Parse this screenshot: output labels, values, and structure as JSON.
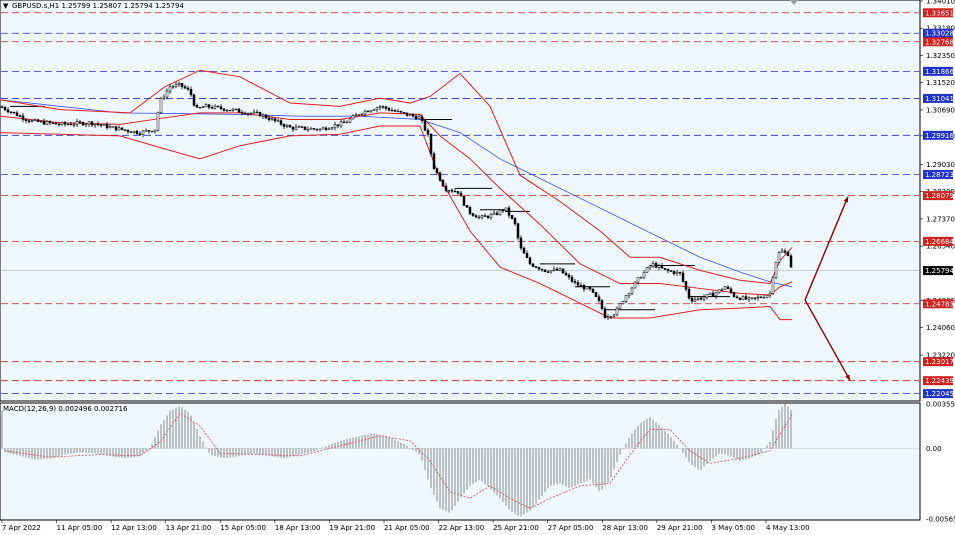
{
  "window": {
    "symbol_header": "GBPUSD.s,H1  1.25799 1.25807 1.25794 1.25794",
    "macd_header": "MACD(12,26,9) 0.002496 0.002716"
  },
  "colors": {
    "background": "#f0f8ff",
    "candles": "#000000",
    "bollinger": "#e02020",
    "moving_average": "#3a55ff",
    "red_level": "#d02020",
    "blue_level": "#2233cc",
    "arrow": "#8b0000",
    "macd_hist": "#8a8a8a",
    "macd_signal": "#d05050"
  },
  "chart_data": [
    {
      "type": "candlestick",
      "panel": "price",
      "symbol": "GBPUSD.s",
      "timeframe": "H1",
      "ylim": [
        1.2185,
        1.3401
      ],
      "y_ticks": [
        "1.34010",
        "1.33180",
        "1.32350",
        "1.31520",
        "1.30690",
        "1.29900",
        "1.29030",
        "1.28200",
        "1.27370",
        "1.26540",
        "1.24880",
        "1.24060",
        "1.23220"
      ],
      "x_ticks": [
        "7 Apr 2022",
        "11 Apr 05:00",
        "12 Apr 13:00",
        "13 Apr 21:00",
        "15 Apr 05:00",
        "18 Apr 13:00",
        "19 Apr 21:00",
        "21 Apr 05:00",
        "22 Apr 13:00",
        "25 Apr 21:00",
        "27 Apr 05:00",
        "28 Apr 13:00",
        "29 Apr 21:00",
        "3 May 05:00",
        "4 May 13:00"
      ],
      "current_price": "1.25794",
      "levels": [
        {
          "value": "1.33651",
          "kind": "resistance",
          "color": "red"
        },
        {
          "value": "1.33028",
          "kind": "level",
          "color": "blue"
        },
        {
          "value": "1.32768",
          "kind": "resistance",
          "color": "red"
        },
        {
          "value": "1.31866",
          "kind": "level",
          "color": "blue"
        },
        {
          "value": "1.31041",
          "kind": "level",
          "color": "blue"
        },
        {
          "value": "1.29916",
          "kind": "level",
          "color": "blue"
        },
        {
          "value": "1.28723",
          "kind": "level",
          "color": "blue"
        },
        {
          "value": "1.28079",
          "kind": "resistance",
          "color": "red"
        },
        {
          "value": "1.26684",
          "kind": "resistance",
          "color": "red"
        },
        {
          "value": "1.24783",
          "kind": "support",
          "color": "red"
        },
        {
          "value": "1.23017",
          "kind": "support",
          "color": "red"
        },
        {
          "value": "1.22439",
          "kind": "support",
          "color": "red"
        },
        {
          "value": "1.22045",
          "kind": "level",
          "color": "blue"
        }
      ],
      "price_path": [
        [
          0,
          1.308
        ],
        [
          30,
          1.3035
        ],
        [
          60,
          1.3025
        ],
        [
          90,
          1.303
        ],
        [
          120,
          1.301
        ],
        [
          140,
          1.3
        ],
        [
          155,
          1.301
        ],
        [
          160,
          1.3095
        ],
        [
          170,
          1.314
        ],
        [
          180,
          1.3145
        ],
        [
          190,
          1.3125
        ],
        [
          196,
          1.307
        ],
        [
          205,
          1.308
        ],
        [
          230,
          1.307
        ],
        [
          260,
          1.3055
        ],
        [
          290,
          1.3015
        ],
        [
          320,
          1.301
        ],
        [
          345,
          1.303
        ],
        [
          360,
          1.306
        ],
        [
          380,
          1.308
        ],
        [
          400,
          1.306
        ],
        [
          420,
          1.3045
        ],
        [
          428,
          1.299
        ],
        [
          433,
          1.29
        ],
        [
          445,
          1.283
        ],
        [
          458,
          1.282
        ],
        [
          468,
          1.276
        ],
        [
          480,
          1.274
        ],
        [
          495,
          1.275
        ],
        [
          505,
          1.277
        ],
        [
          515,
          1.272
        ],
        [
          520,
          1.265
        ],
        [
          530,
          1.26
        ],
        [
          545,
          1.258
        ],
        [
          560,
          1.258
        ],
        [
          575,
          1.254
        ],
        [
          590,
          1.252
        ],
        [
          600,
          1.248
        ],
        [
          605,
          1.244
        ],
        [
          615,
          1.245
        ],
        [
          625,
          1.25
        ],
        [
          640,
          1.256
        ],
        [
          652,
          1.26
        ],
        [
          665,
          1.258
        ],
        [
          680,
          1.257
        ],
        [
          690,
          1.249
        ],
        [
          700,
          1.2495
        ],
        [
          715,
          1.251
        ],
        [
          725,
          1.253
        ],
        [
          735,
          1.25
        ],
        [
          750,
          1.249
        ],
        [
          762,
          1.25
        ],
        [
          770,
          1.251
        ],
        [
          775,
          1.26
        ],
        [
          780,
          1.264
        ],
        [
          788,
          1.263
        ],
        [
          792,
          1.258
        ]
      ],
      "bollinger_upper": [
        [
          0,
          1.31
        ],
        [
          60,
          1.307
        ],
        [
          130,
          1.306
        ],
        [
          165,
          1.314
        ],
        [
          200,
          1.319
        ],
        [
          240,
          1.317
        ],
        [
          290,
          1.309
        ],
        [
          340,
          1.308
        ],
        [
          380,
          1.3105
        ],
        [
          410,
          1.309
        ],
        [
          430,
          1.311
        ],
        [
          460,
          1.318
        ],
        [
          490,
          1.308
        ],
        [
          520,
          1.287
        ],
        [
          560,
          1.279
        ],
        [
          600,
          1.27
        ],
        [
          630,
          1.262
        ],
        [
          660,
          1.262
        ],
        [
          700,
          1.258
        ],
        [
          740,
          1.255
        ],
        [
          770,
          1.254
        ],
        [
          780,
          1.261
        ],
        [
          792,
          1.265
        ]
      ],
      "bollinger_lower": [
        [
          0,
          1.3
        ],
        [
          60,
          1.2995
        ],
        [
          120,
          1.299
        ],
        [
          165,
          1.295
        ],
        [
          200,
          1.292
        ],
        [
          240,
          1.296
        ],
        [
          290,
          1.299
        ],
        [
          340,
          1.2995
        ],
        [
          380,
          1.302
        ],
        [
          420,
          1.302
        ],
        [
          440,
          1.286
        ],
        [
          470,
          1.27
        ],
        [
          500,
          1.259
        ],
        [
          540,
          1.254
        ],
        [
          580,
          1.248
        ],
        [
          610,
          1.2435
        ],
        [
          650,
          1.2435
        ],
        [
          700,
          1.246
        ],
        [
          740,
          1.2465
        ],
        [
          770,
          1.247
        ],
        [
          780,
          1.243
        ],
        [
          792,
          1.243
        ]
      ],
      "bollinger_middle": [
        [
          0,
          1.305
        ],
        [
          60,
          1.303
        ],
        [
          120,
          1.3025
        ],
        [
          165,
          1.3045
        ],
        [
          200,
          1.306
        ],
        [
          240,
          1.306
        ],
        [
          290,
          1.304
        ],
        [
          340,
          1.304
        ],
        [
          380,
          1.306
        ],
        [
          420,
          1.3055
        ],
        [
          440,
          1.299
        ],
        [
          470,
          1.292
        ],
        [
          500,
          1.283
        ],
        [
          540,
          1.272
        ],
        [
          580,
          1.26
        ],
        [
          620,
          1.254
        ],
        [
          660,
          1.254
        ],
        [
          700,
          1.2525
        ],
        [
          740,
          1.251
        ],
        [
          770,
          1.2505
        ],
        [
          780,
          1.253
        ],
        [
          792,
          1.2545
        ]
      ],
      "moving_average": [
        [
          0,
          1.31
        ],
        [
          60,
          1.308
        ],
        [
          120,
          1.306
        ],
        [
          180,
          1.3058
        ],
        [
          240,
          1.3055
        ],
        [
          300,
          1.305
        ],
        [
          360,
          1.305
        ],
        [
          420,
          1.304
        ],
        [
          460,
          1.3
        ],
        [
          500,
          1.292
        ],
        [
          540,
          1.286
        ],
        [
          580,
          1.28
        ],
        [
          620,
          1.274
        ],
        [
          660,
          1.268
        ],
        [
          700,
          1.262
        ],
        [
          740,
          1.2575
        ],
        [
          770,
          1.2545
        ],
        [
          792,
          1.253
        ]
      ],
      "forecast_arrows": [
        {
          "direction": "up",
          "from": [
            805,
            1.249
          ],
          "to": [
            848,
            1.2805
          ]
        },
        {
          "direction": "down",
          "from": [
            805,
            1.249
          ],
          "to": [
            850,
            1.2245
          ]
        }
      ],
      "horizontal_segments": [
        [
          455,
          492,
          1.283
        ],
        [
          480,
          505,
          1.2765
        ],
        [
          505,
          530,
          1.276
        ],
        [
          540,
          575,
          1.26
        ],
        [
          575,
          610,
          1.253
        ],
        [
          605,
          655,
          1.246
        ],
        [
          650,
          695,
          1.2595
        ],
        [
          690,
          730,
          1.25
        ],
        [
          10,
          45,
          1.308
        ],
        [
          420,
          452,
          1.304
        ]
      ]
    },
    {
      "type": "bar",
      "panel": "indicator",
      "name": "MACD(12,26,9)",
      "main_value": "0.002496",
      "signal_value": "0.002716",
      "ylim": [
        -0.005656,
        0.003552
      ],
      "y_ticks": [
        "0.003552",
        "0.00",
        "-0.005656"
      ],
      "histogram": [
        [
          5,
          -0.0003
        ],
        [
          20,
          -0.0006
        ],
        [
          35,
          -0.0009
        ],
        [
          50,
          -0.0008
        ],
        [
          65,
          -0.0005
        ],
        [
          80,
          -0.0003
        ],
        [
          95,
          -0.0004
        ],
        [
          110,
          -0.0006
        ],
        [
          125,
          -0.0008
        ],
        [
          140,
          -0.0006
        ],
        [
          150,
          0.0
        ],
        [
          160,
          0.0018
        ],
        [
          170,
          0.003
        ],
        [
          180,
          0.0034
        ],
        [
          190,
          0.0028
        ],
        [
          200,
          0.001
        ],
        [
          210,
          -0.0005
        ],
        [
          225,
          -0.0008
        ],
        [
          240,
          -0.0006
        ],
        [
          255,
          -0.0004
        ],
        [
          270,
          -0.0006
        ],
        [
          285,
          -0.0008
        ],
        [
          300,
          -0.0005
        ],
        [
          315,
          -0.0002
        ],
        [
          330,
          0.0003
        ],
        [
          345,
          0.0007
        ],
        [
          360,
          0.001
        ],
        [
          375,
          0.0012
        ],
        [
          390,
          0.0009
        ],
        [
          405,
          0.0003
        ],
        [
          420,
          -0.0005
        ],
        [
          430,
          -0.003
        ],
        [
          440,
          -0.0048
        ],
        [
          450,
          -0.0052
        ],
        [
          460,
          -0.004
        ],
        [
          470,
          -0.003
        ],
        [
          480,
          -0.0025
        ],
        [
          490,
          -0.0032
        ],
        [
          500,
          -0.004
        ],
        [
          510,
          -0.005
        ],
        [
          520,
          -0.0055
        ],
        [
          530,
          -0.005
        ],
        [
          540,
          -0.004
        ],
        [
          550,
          -0.003
        ],
        [
          560,
          -0.0028
        ],
        [
          570,
          -0.0032
        ],
        [
          580,
          -0.0028
        ],
        [
          590,
          -0.0025
        ],
        [
          600,
          -0.0035
        ],
        [
          610,
          -0.0025
        ],
        [
          620,
          -0.0005
        ],
        [
          630,
          0.001
        ],
        [
          640,
          0.002
        ],
        [
          650,
          0.0025
        ],
        [
          660,
          0.0018
        ],
        [
          670,
          0.001
        ],
        [
          680,
          0.0
        ],
        [
          690,
          -0.0012
        ],
        [
          700,
          -0.0018
        ],
        [
          710,
          -0.001
        ],
        [
          720,
          -0.0004
        ],
        [
          730,
          -0.0006
        ],
        [
          740,
          -0.001
        ],
        [
          750,
          -0.0008
        ],
        [
          760,
          -0.0004
        ],
        [
          770,
          0.0005
        ],
        [
          778,
          0.003
        ],
        [
          785,
          0.0036
        ],
        [
          792,
          0.003
        ]
      ],
      "signal": [
        [
          5,
          -0.0002
        ],
        [
          50,
          -0.0007
        ],
        [
          100,
          -0.0005
        ],
        [
          140,
          -0.0006
        ],
        [
          160,
          0.0005
        ],
        [
          180,
          0.0028
        ],
        [
          200,
          0.0018
        ],
        [
          220,
          -0.0004
        ],
        [
          260,
          -0.0005
        ],
        [
          300,
          -0.0006
        ],
        [
          340,
          0.0002
        ],
        [
          380,
          0.001
        ],
        [
          410,
          0.0006
        ],
        [
          430,
          -0.001
        ],
        [
          450,
          -0.0035
        ],
        [
          470,
          -0.004
        ],
        [
          490,
          -0.003
        ],
        [
          510,
          -0.004
        ],
        [
          530,
          -0.0048
        ],
        [
          550,
          -0.004
        ],
        [
          580,
          -0.003
        ],
        [
          610,
          -0.0028
        ],
        [
          630,
          -0.0005
        ],
        [
          650,
          0.0015
        ],
        [
          670,
          0.0015
        ],
        [
          690,
          -0.0002
        ],
        [
          710,
          -0.0012
        ],
        [
          740,
          -0.0008
        ],
        [
          770,
          -0.0002
        ],
        [
          785,
          0.0018
        ],
        [
          792,
          0.0027
        ]
      ]
    }
  ]
}
